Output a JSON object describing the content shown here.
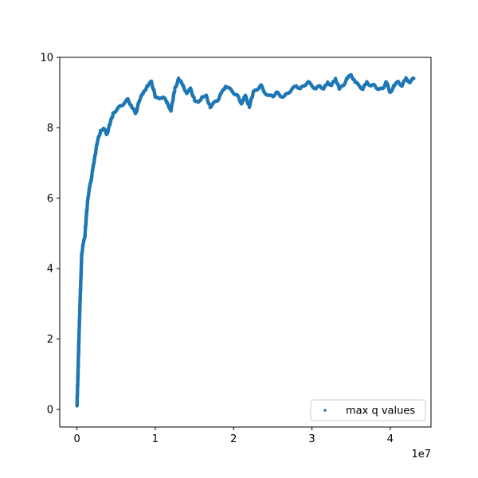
{
  "chart_data": {
    "type": "scatter",
    "title": "",
    "xlabel": "",
    "ylabel": "",
    "x_offset_label": "1e7",
    "xlim": [
      -2200000,
      45200000
    ],
    "ylim": [
      -0.5,
      10.0
    ],
    "xticks": [
      0,
      10000000,
      20000000,
      30000000,
      40000000
    ],
    "xtick_labels": [
      "0",
      "1",
      "2",
      "3",
      "4"
    ],
    "yticks": [
      0,
      2,
      4,
      6,
      8,
      10
    ],
    "ytick_labels": [
      "0",
      "2",
      "4",
      "6",
      "8",
      "10"
    ],
    "grid": false,
    "legend": {
      "position": "lower-right",
      "entries": [
        "max q values"
      ]
    },
    "color": "#1f77b4",
    "series": [
      {
        "name": "max q values",
        "x": [
          0,
          100000,
          200000,
          300000,
          400000,
          500000,
          600000,
          800000,
          1000000,
          1200000,
          1400000,
          1600000,
          1800000,
          2000000,
          2300000,
          2600000,
          3000000,
          3400000,
          3800000,
          4200000,
          4600000,
          5000000,
          5500000,
          6000000,
          6500000,
          7000000,
          7500000,
          8000000,
          8500000,
          9000000,
          9500000,
          10000000,
          10500000,
          11000000,
          11500000,
          12000000,
          12500000,
          13000000,
          13500000,
          14000000,
          14500000,
          15000000,
          15500000,
          16000000,
          16500000,
          17000000,
          17500000,
          18000000,
          18500000,
          19000000,
          19500000,
          20000000,
          20500000,
          21000000,
          21500000,
          22000000,
          22500000,
          23000000,
          23500000,
          24000000,
          24500000,
          25000000,
          25500000,
          26000000,
          26500000,
          27000000,
          27500000,
          28000000,
          28500000,
          29000000,
          29500000,
          30000000,
          30500000,
          31000000,
          31500000,
          32000000,
          32500000,
          33000000,
          33500000,
          34000000,
          34500000,
          35000000,
          35500000,
          36000000,
          36500000,
          37000000,
          37500000,
          38000000,
          38500000,
          39000000,
          39500000,
          40000000,
          40500000,
          41000000,
          41500000,
          42000000,
          42500000,
          43000000
        ],
        "y": [
          0.1,
          0.8,
          1.6,
          2.4,
          3.1,
          3.7,
          4.4,
          4.7,
          4.9,
          5.5,
          6.0,
          6.3,
          6.5,
          6.8,
          7.2,
          7.6,
          7.9,
          8.0,
          7.8,
          8.1,
          8.4,
          8.5,
          8.6,
          8.7,
          8.8,
          8.6,
          8.4,
          8.8,
          9.0,
          9.2,
          9.3,
          8.9,
          8.8,
          8.9,
          8.7,
          8.5,
          9.1,
          9.4,
          9.2,
          9.0,
          9.1,
          8.8,
          8.7,
          8.9,
          8.9,
          8.6,
          8.7,
          8.8,
          9.0,
          9.2,
          9.1,
          9.0,
          8.9,
          8.7,
          8.9,
          8.6,
          9.0,
          9.1,
          9.2,
          9.0,
          8.9,
          8.9,
          9.0,
          8.9,
          8.9,
          9.0,
          9.1,
          9.2,
          9.1,
          9.2,
          9.3,
          9.2,
          9.1,
          9.2,
          9.1,
          9.3,
          9.2,
          9.4,
          9.1,
          9.2,
          9.4,
          9.5,
          9.3,
          9.2,
          9.1,
          9.3,
          9.2,
          9.2,
          9.1,
          9.1,
          9.3,
          9.0,
          9.2,
          9.3,
          9.2,
          9.4,
          9.3,
          9.4
        ]
      }
    ]
  }
}
